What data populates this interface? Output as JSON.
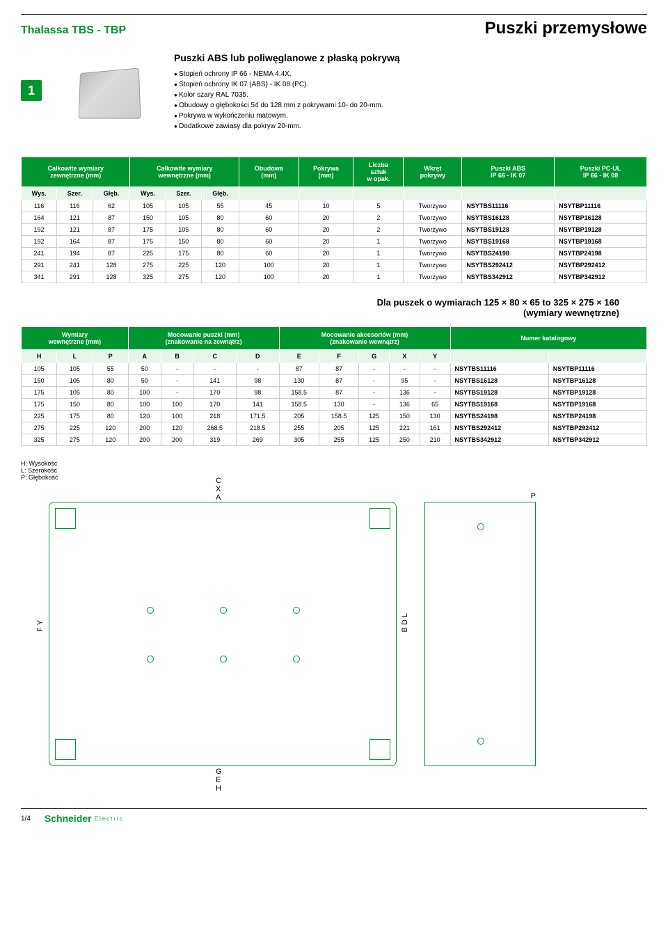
{
  "header": {
    "brand": "Thalassa TBS - TBP",
    "title": "Puszki przemysłowe"
  },
  "chip": "1",
  "section_title": "Puszki ABS lub poliwęglanowe z płaską pokrywą",
  "bullets": [
    "Stopień ochrony IP 66 - NEMA 4.4X.",
    "Stopień ochrony IK 07 (ABS) - IK 08 (PC).",
    "Kolor szary RAL 7035.",
    "Obudowy o głębokości 54 do 128 mm z pokrywami 10- do 20-mm.",
    "Pokrywa w wykończeniu matowym.",
    "Dodatkowe zawiasy dla pokryw 20-mm."
  ],
  "table1": {
    "head_groups": [
      {
        "label": "Całkowite wymiary\nzewnętrzne (mm)",
        "span": 3
      },
      {
        "label": "Całkowite wymiary\nwewnętrzne (mm)",
        "span": 3
      },
      {
        "label": "Obudowa\n(mm)",
        "span": 1
      },
      {
        "label": "Pokrywa\n(mm)",
        "span": 1
      },
      {
        "label": "Liczba\nsztuk\nw opak.",
        "span": 1
      },
      {
        "label": "Wkręt\npokrywy",
        "span": 1
      },
      {
        "label": "Puszki ABS\nIP 66 - IK 07",
        "span": 1
      },
      {
        "label": "Puszki PC-UL\nIP 66 - IK 08",
        "span": 1
      }
    ],
    "sub_cols": [
      "Wys.",
      "Szer.",
      "Głęb.",
      "Wys.",
      "Szer.",
      "Głęb.",
      "",
      "",
      "",
      "",
      "",
      ""
    ],
    "rows": [
      [
        "116",
        "116",
        "62",
        "105",
        "105",
        "55",
        "45",
        "10",
        "5",
        "Tworzywo",
        "NSYTBS11116",
        "NSYTBP11116"
      ],
      [
        "164",
        "121",
        "87",
        "150",
        "105",
        "80",
        "60",
        "20",
        "2",
        "Tworzywo",
        "NSYTBS16128",
        "NSYTBP16128"
      ],
      [
        "192",
        "121",
        "87",
        "175",
        "105",
        "80",
        "60",
        "20",
        "2",
        "Tworzywo",
        "NSYTBS19128",
        "NSYTBP19128"
      ],
      [
        "192",
        "164",
        "87",
        "175",
        "150",
        "80",
        "60",
        "20",
        "1",
        "Tworzywo",
        "NSYTBS19168",
        "NSYTBP19168"
      ],
      [
        "241",
        "194",
        "87",
        "225",
        "175",
        "80",
        "60",
        "20",
        "1",
        "Tworzywo",
        "NSYTBS24198",
        "NSYTBP24198"
      ],
      [
        "291",
        "241",
        "128",
        "275",
        "225",
        "120",
        "100",
        "20",
        "1",
        "Tworzywo",
        "NSYTBS292412",
        "NSYTBP292412"
      ],
      [
        "341",
        "291",
        "128",
        "325",
        "275",
        "120",
        "100",
        "20",
        "1",
        "Tworzywo",
        "NSYTBS342912",
        "NSYTBP342912"
      ]
    ]
  },
  "midnote": "Dla  puszek o wymiarach 125 × 80 × 65 to 325 × 275 × 160\n(wymiary wewnętrzne)",
  "table2": {
    "head_groups": [
      {
        "label": "Wymiary\nwewnętrzne (mm)",
        "span": 3
      },
      {
        "label": "Mocowanie puszki (mm)\n(znakowanie na zewnątrz)",
        "span": 4
      },
      {
        "label": "Mocowanie akcesoriów (mm)\n(znakowanie wewnątrz)",
        "span": 5
      },
      {
        "label": "Numer katalogowy",
        "span": 2
      }
    ],
    "sub_cols": [
      "H",
      "L",
      "P",
      "A",
      "B",
      "C",
      "D",
      "E",
      "F",
      "G",
      "X",
      "Y",
      "",
      ""
    ],
    "rows": [
      [
        "105",
        "105",
        "55",
        "50",
        "-",
        "-",
        "-",
        "87",
        "87",
        "-",
        "-",
        "-",
        "NSYTBS11116",
        "NSYTBP11116"
      ],
      [
        "150",
        "105",
        "80",
        "50",
        "-",
        "141",
        "98",
        "130",
        "87",
        "-",
        "95",
        "-",
        "NSYTBS16128",
        "NSYTBP16128"
      ],
      [
        "175",
        "105",
        "80",
        "100",
        "-",
        "170",
        "98",
        "158.5",
        "87",
        "-",
        "136",
        "-",
        "NSYTBS19128",
        "NSYTBP19128"
      ],
      [
        "175",
        "150",
        "80",
        "100",
        "100",
        "170",
        "141",
        "158.5",
        "130",
        "-",
        "136",
        "65",
        "NSYTBS19168",
        "NSYTBP19168"
      ],
      [
        "225",
        "175",
        "80",
        "120",
        "100",
        "218",
        "171.5",
        "205",
        "158.5",
        "125",
        "150",
        "130",
        "NSYTBS24198",
        "NSYTBP24198"
      ],
      [
        "275",
        "225",
        "120",
        "200",
        "120",
        "268.5",
        "218.5",
        "255",
        "205",
        "125",
        "221",
        "161",
        "NSYTBS292412",
        "NSYTBP292412"
      ],
      [
        "325",
        "275",
        "120",
        "200",
        "200",
        "319",
        "269",
        "305",
        "255",
        "125",
        "250",
        "210",
        "NSYTBS342912",
        "NSYTBP342912"
      ]
    ]
  },
  "legend": [
    "H: Wysokość",
    "L: Szerokość",
    "P: Głębokość"
  ],
  "diagram_labels": {
    "top": [
      "C",
      "X",
      "A"
    ],
    "left": [
      "F",
      "Y"
    ],
    "right": [
      "B",
      "D",
      "L"
    ],
    "bottom": [
      "G",
      "E",
      "H"
    ],
    "side": "P"
  },
  "footer": {
    "page": "1/4",
    "logo_main": "Schneider",
    "logo_sub": "Electric"
  },
  "colors": {
    "brand_green": "#009530",
    "head_green": "#009530",
    "sub_green": "#e6f4ea"
  }
}
